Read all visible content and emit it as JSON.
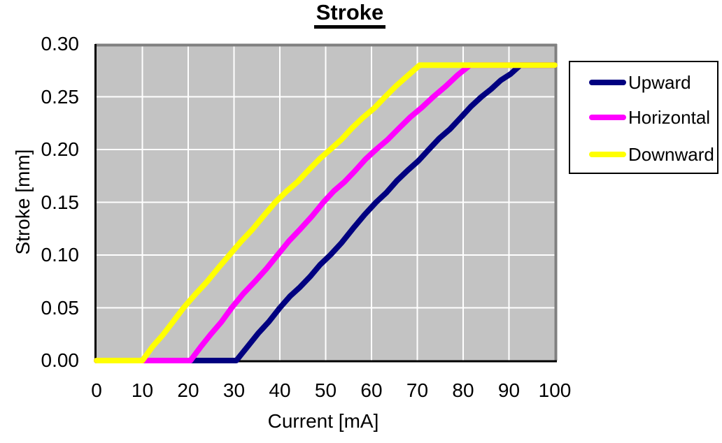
{
  "title": "Stroke",
  "chart_data": {
    "type": "line",
    "title": "Stroke",
    "xlabel": "Current [mA]",
    "ylabel": "Stroke [mm]",
    "xlim": [
      0,
      100
    ],
    "ylim": [
      0,
      0.3
    ],
    "x_ticks": [
      0,
      10,
      20,
      30,
      40,
      50,
      60,
      70,
      80,
      90,
      100
    ],
    "y_ticks": [
      0.0,
      0.05,
      0.1,
      0.15,
      0.2,
      0.25,
      0.3
    ],
    "y_tick_decimals": 2,
    "grid": true,
    "legend_position": "right",
    "plot_bg_color": "#c3c3c3",
    "gridline_color": "#ffffff",
    "axis_color": "#000000",
    "outer_border_color": "#808080",
    "plateau_value": 0.28,
    "series": [
      {
        "name": "Upward",
        "color": "#000080",
        "points": [
          [
            0,
            0
          ],
          [
            30.5,
            0
          ],
          [
            40,
            0.05
          ],
          [
            51,
            0.1
          ],
          [
            61,
            0.15
          ],
          [
            72.5,
            0.2
          ],
          [
            84,
            0.25
          ],
          [
            92.5,
            0.28
          ],
          [
            100,
            0.28
          ]
        ]
      },
      {
        "name": "Horizontal",
        "color": "#ff00ff",
        "points": [
          [
            0,
            0
          ],
          [
            20.5,
            0
          ],
          [
            29.5,
            0.05
          ],
          [
            39.5,
            0.1
          ],
          [
            49.5,
            0.15
          ],
          [
            61,
            0.2
          ],
          [
            73.5,
            0.25
          ],
          [
            81.5,
            0.28
          ],
          [
            100,
            0.28
          ]
        ]
      },
      {
        "name": "Downward",
        "color": "#ffff00",
        "points": [
          [
            0,
            0
          ],
          [
            10,
            0
          ],
          [
            19,
            0.05
          ],
          [
            29,
            0.1
          ],
          [
            39,
            0.15
          ],
          [
            51,
            0.2
          ],
          [
            63,
            0.25
          ],
          [
            70.5,
            0.28
          ],
          [
            100,
            0.28
          ]
        ]
      }
    ]
  }
}
